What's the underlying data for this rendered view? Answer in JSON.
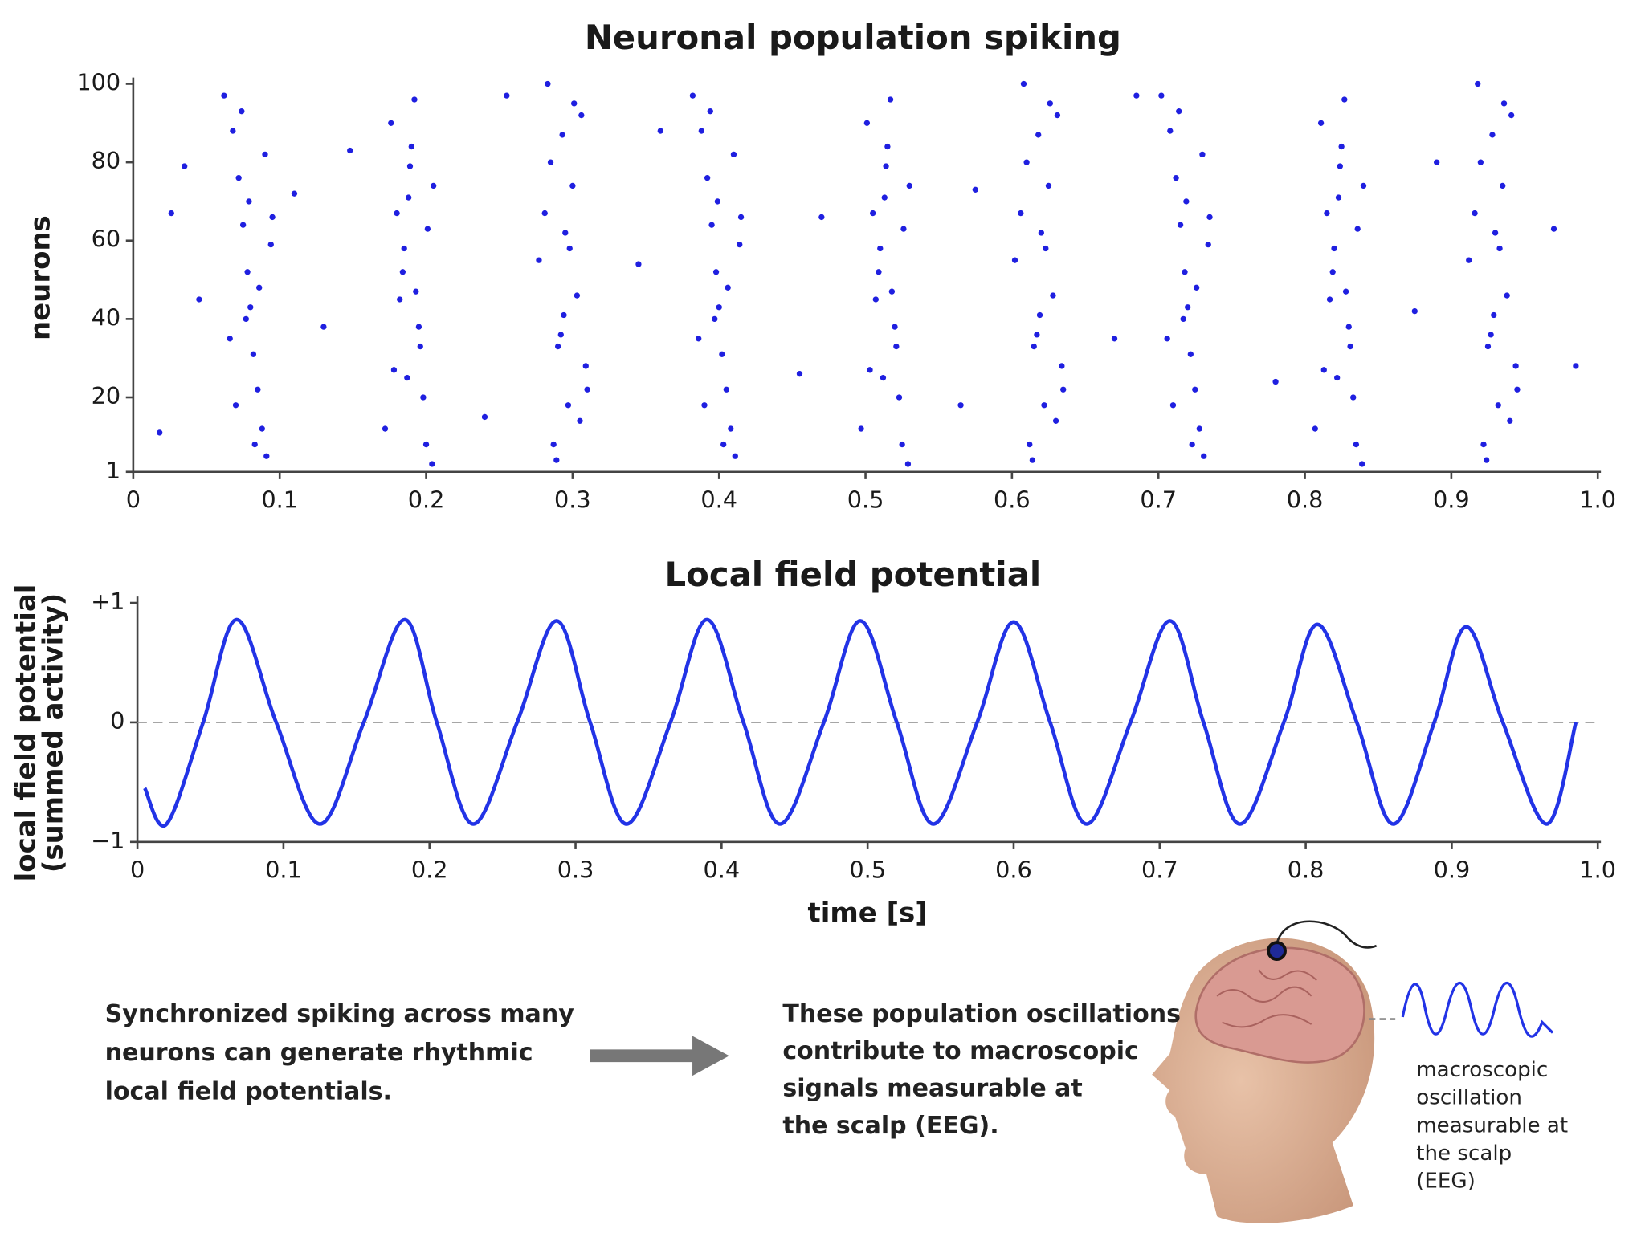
{
  "chart_data": [
    {
      "type": "scatter",
      "title": "Neuronal population spiking",
      "ylabel": "neurons",
      "color": "#1f1fe0",
      "xlim": [
        0,
        1
      ],
      "ylim": [
        1,
        100
      ],
      "xticks": [
        0,
        0.1,
        0.2,
        0.3,
        0.4,
        0.5,
        0.6,
        0.7,
        0.8,
        0.9,
        {
          "value": 1,
          "label": "1.0"
        }
      ],
      "yticks": [
        1,
        20,
        40,
        60,
        80,
        100
      ],
      "x": [
        0.062,
        0.068,
        0.072,
        0.075,
        0.078,
        0.08,
        0.082,
        0.085,
        0.088,
        0.091,
        0.094,
        0.066,
        0.074,
        0.079,
        0.086,
        0.09,
        0.07,
        0.083,
        0.077,
        0.095,
        0.172,
        0.178,
        0.182,
        0.185,
        0.188,
        0.19,
        0.192,
        0.195,
        0.198,
        0.201,
        0.204,
        0.176,
        0.184,
        0.189,
        0.196,
        0.2,
        0.18,
        0.193,
        0.187,
        0.205,
        0.277,
        0.283,
        0.287,
        0.29,
        0.293,
        0.295,
        0.297,
        0.3,
        0.303,
        0.306,
        0.309,
        0.281,
        0.289,
        0.294,
        0.301,
        0.305,
        0.285,
        0.298,
        0.292,
        0.31,
        0.382,
        0.388,
        0.392,
        0.395,
        0.398,
        0.4,
        0.402,
        0.405,
        0.408,
        0.411,
        0.414,
        0.386,
        0.394,
        0.399,
        0.406,
        0.41,
        0.39,
        0.403,
        0.397,
        0.415,
        0.497,
        0.503,
        0.507,
        0.51,
        0.513,
        0.515,
        0.517,
        0.52,
        0.523,
        0.526,
        0.529,
        0.501,
        0.509,
        0.514,
        0.521,
        0.525,
        0.505,
        0.518,
        0.512,
        0.53,
        0.602,
        0.608,
        0.612,
        0.615,
        0.618,
        0.62,
        0.622,
        0.625,
        0.628,
        0.631,
        0.634,
        0.606,
        0.614,
        0.619,
        0.626,
        0.63,
        0.61,
        0.623,
        0.617,
        0.635,
        0.702,
        0.708,
        0.712,
        0.715,
        0.718,
        0.72,
        0.722,
        0.725,
        0.728,
        0.731,
        0.734,
        0.706,
        0.714,
        0.719,
        0.726,
        0.73,
        0.71,
        0.723,
        0.717,
        0.735,
        0.807,
        0.813,
        0.817,
        0.82,
        0.823,
        0.825,
        0.827,
        0.83,
        0.833,
        0.836,
        0.839,
        0.811,
        0.819,
        0.824,
        0.831,
        0.835,
        0.815,
        0.828,
        0.822,
        0.84,
        0.912,
        0.918,
        0.922,
        0.925,
        0.928,
        0.93,
        0.932,
        0.935,
        0.938,
        0.941,
        0.944,
        0.916,
        0.924,
        0.929,
        0.936,
        0.94,
        0.92,
        0.933,
        0.927,
        0.945,
        0.018,
        0.026,
        0.035,
        0.045,
        0.11,
        0.13,
        0.148,
        0.24,
        0.255,
        0.345,
        0.36,
        0.455,
        0.47,
        0.565,
        0.575,
        0.67,
        0.685,
        0.78,
        0.875,
        0.89,
        0.97,
        0.985
      ],
      "y": [
        97,
        88,
        76,
        64,
        52,
        43,
        31,
        22,
        12,
        5,
        59,
        35,
        93,
        70,
        48,
        82,
        18,
        8,
        40,
        66,
        12,
        27,
        45,
        58,
        71,
        84,
        96,
        38,
        20,
        63,
        3,
        90,
        52,
        79,
        33,
        8,
        67,
        47,
        25,
        74,
        55,
        100,
        8,
        33,
        87,
        62,
        18,
        74,
        46,
        92,
        28,
        67,
        4,
        41,
        95,
        14,
        80,
        58,
        36,
        22,
        97,
        88,
        76,
        64,
        52,
        43,
        31,
        22,
        12,
        5,
        59,
        35,
        93,
        70,
        48,
        82,
        18,
        8,
        40,
        66,
        12,
        27,
        45,
        58,
        71,
        84,
        96,
        38,
        20,
        63,
        3,
        90,
        52,
        79,
        33,
        8,
        67,
        47,
        25,
        74,
        55,
        100,
        8,
        33,
        87,
        62,
        18,
        74,
        46,
        92,
        28,
        67,
        4,
        41,
        95,
        14,
        80,
        58,
        36,
        22,
        97,
        88,
        76,
        64,
        52,
        43,
        31,
        22,
        12,
        5,
        59,
        35,
        93,
        70,
        48,
        82,
        18,
        8,
        40,
        66,
        12,
        27,
        45,
        58,
        71,
        84,
        96,
        38,
        20,
        63,
        3,
        90,
        52,
        79,
        33,
        8,
        67,
        47,
        25,
        74,
        55,
        100,
        8,
        33,
        87,
        62,
        18,
        74,
        46,
        92,
        28,
        67,
        4,
        41,
        95,
        14,
        80,
        58,
        36,
        22,
        11,
        67,
        79,
        45,
        72,
        38,
        83,
        15,
        97,
        54,
        88,
        26,
        66,
        18,
        73,
        35,
        97,
        24,
        42,
        80,
        63,
        28
      ]
    },
    {
      "type": "line",
      "title": "Local field potential",
      "ylabel": [
        "local field potential",
        "(summed activity)"
      ],
      "xlabel": "time [s]",
      "color": "#2233e6",
      "hline": 0,
      "xlim": [
        0,
        1
      ],
      "ylim": [
        -1,
        1
      ],
      "xticks": [
        0,
        0.1,
        0.2,
        0.3,
        0.4,
        0.5,
        0.6,
        0.7,
        0.8,
        0.9,
        {
          "value": 1,
          "label": "1.0"
        }
      ],
      "yticks": [
        {
          "value": 1,
          "label": "+1"
        },
        0,
        {
          "value": -1,
          "label": "−1"
        }
      ],
      "x": [
        0.005,
        0.02,
        0.045,
        0.068,
        0.095,
        0.125,
        0.155,
        0.183,
        0.205,
        0.23,
        0.26,
        0.287,
        0.31,
        0.335,
        0.365,
        0.39,
        0.415,
        0.44,
        0.47,
        0.495,
        0.52,
        0.545,
        0.575,
        0.6,
        0.625,
        0.65,
        0.68,
        0.707,
        0.73,
        0.755,
        0.785,
        0.808,
        0.835,
        0.86,
        0.888,
        0.91,
        0.935,
        0.965,
        0.985
      ],
      "y": [
        -0.55,
        -0.85,
        0,
        0.86,
        0,
        -0.85,
        0,
        0.86,
        0,
        -0.85,
        0,
        0.85,
        0,
        -0.85,
        0,
        0.86,
        0,
        -0.85,
        0,
        0.85,
        0,
        -0.85,
        0,
        0.84,
        0,
        -0.85,
        0,
        0.85,
        0,
        -0.85,
        0,
        0.82,
        0,
        -0.85,
        0,
        0.8,
        0,
        -0.85,
        0
      ]
    }
  ],
  "notes": {
    "left": [
      "Synchronized spiking across many",
      "neurons can generate rhythmic",
      "local field potentials."
    ],
    "right": [
      "These population oscillations",
      "contribute to macroscopic",
      "signals measurable at",
      "the scalp (EEG)."
    ],
    "caption": [
      "macroscopic",
      "oscillation",
      "measurable at",
      "the scalp",
      "(EEG)"
    ]
  }
}
